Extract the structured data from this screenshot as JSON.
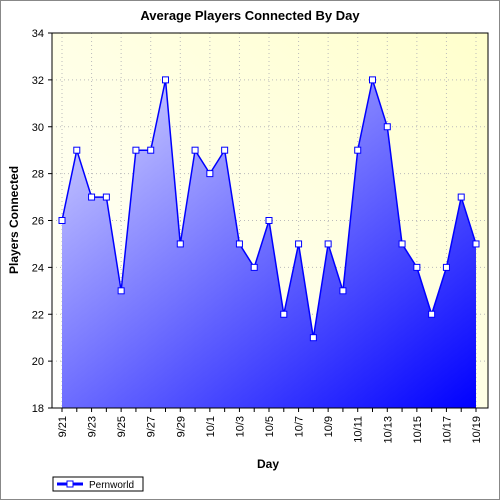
{
  "chart_data": {
    "type": "area",
    "title": "Average Players Connected By Day",
    "x_label": "Day",
    "y_label": "Players Connected",
    "categories": [
      "9/21",
      null,
      "9/23",
      null,
      "9/25",
      null,
      "9/27",
      null,
      "9/29",
      null,
      "10/1",
      null,
      "10/3",
      null,
      "10/5",
      null,
      "10/7",
      null,
      "10/9",
      null,
      "10/11",
      null,
      "10/13",
      null,
      "10/15",
      null,
      "10/17",
      null,
      "10/19"
    ],
    "series": [
      {
        "name": "Pernworld",
        "color": "#0000ff",
        "values": [
          26,
          29,
          27,
          27,
          23,
          29,
          29,
          32,
          25,
          29,
          28,
          29,
          25,
          24,
          26,
          22,
          25,
          21,
          25,
          23,
          29,
          32,
          30,
          25,
          24,
          22,
          24,
          27,
          25
        ]
      }
    ],
    "ylim": [
      18,
      34
    ],
    "yticks": [
      18,
      20,
      22,
      24,
      26,
      28,
      30,
      32,
      34
    ],
    "grid": true,
    "legend": "bottom-left"
  }
}
